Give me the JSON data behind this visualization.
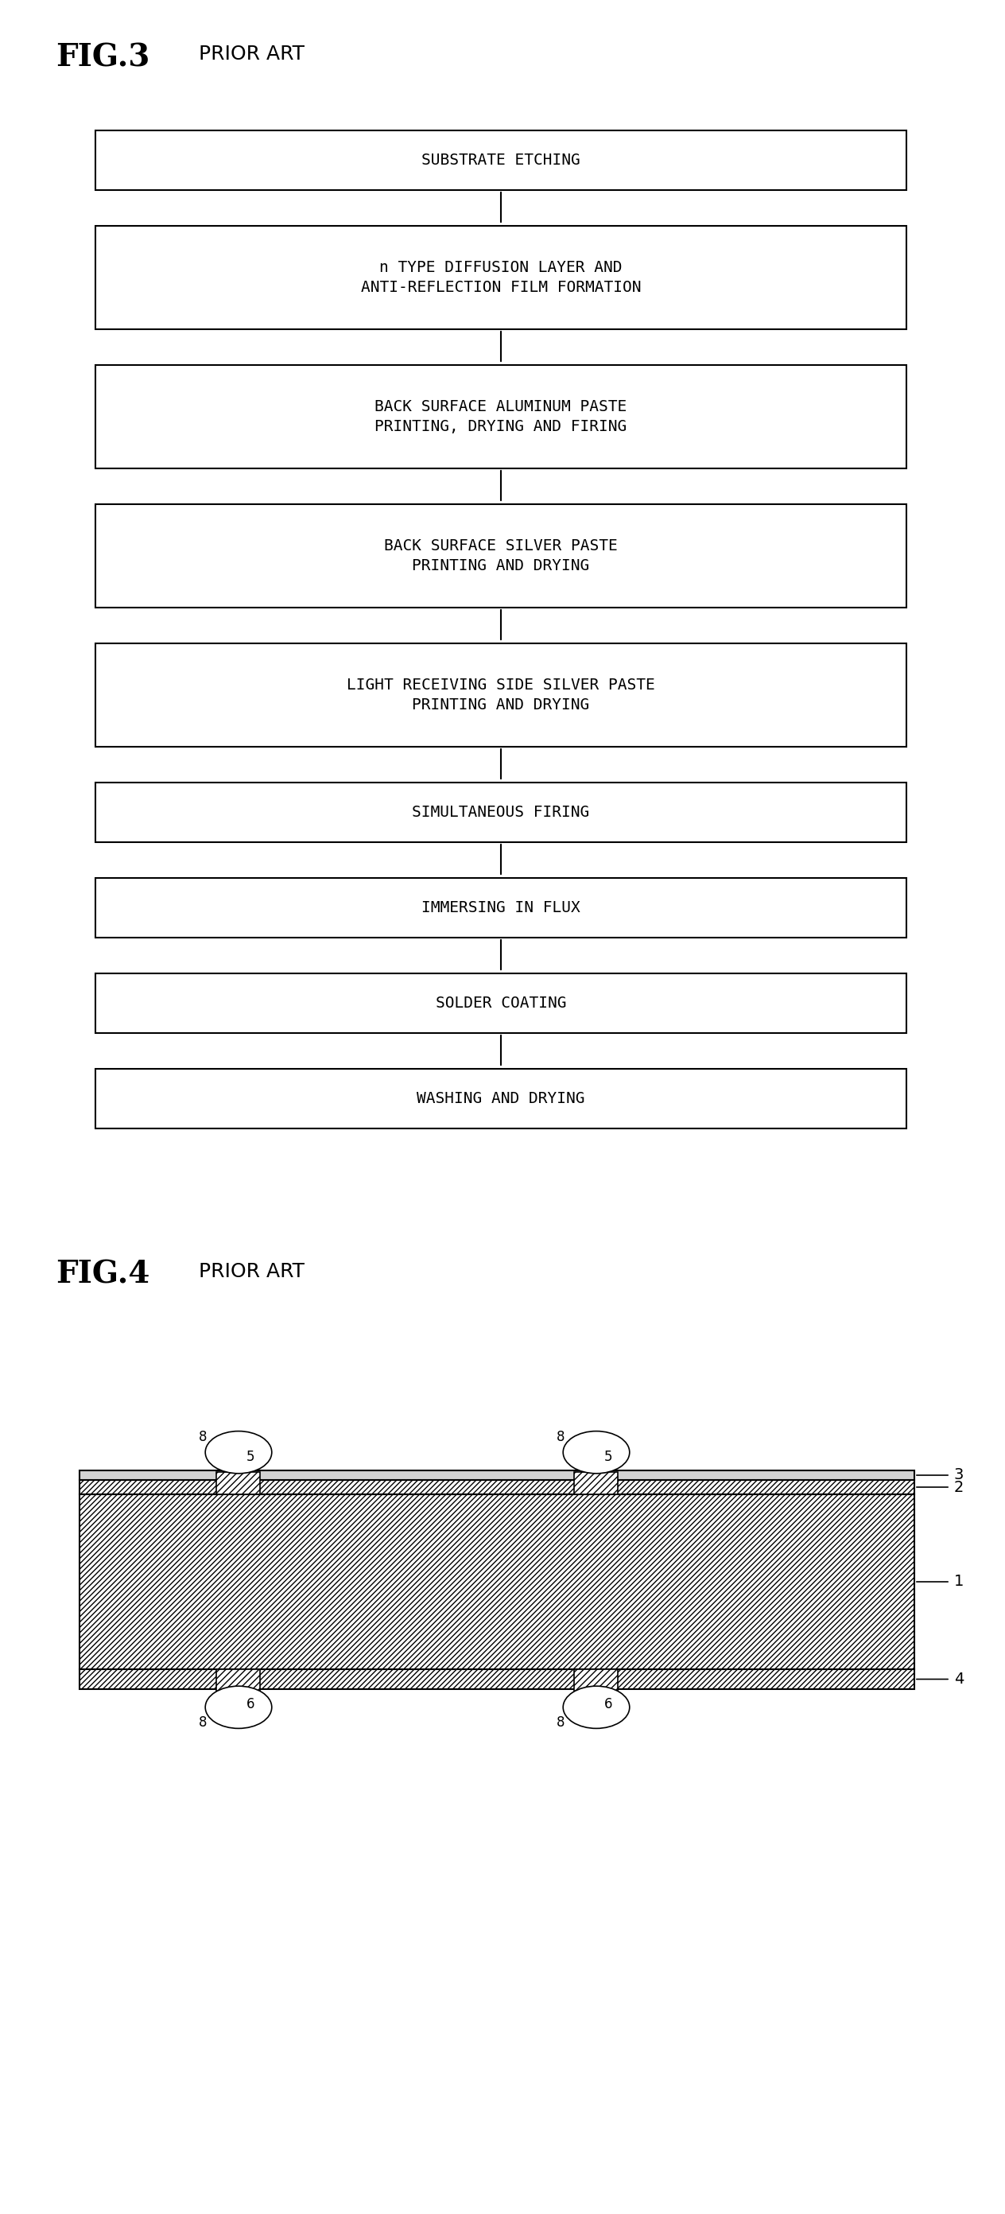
{
  "fig3_title": "FIG.3",
  "fig3_subtitle": "PRIOR ART",
  "fig4_title": "FIG.4",
  "fig4_subtitle": "PRIOR ART",
  "flowchart_boxes": [
    "SUBSTRATE ETCHING",
    "n TYPE DIFFUSION LAYER AND\nANTI-REFLECTION FILM FORMATION",
    "BACK SURFACE ALUMINUM PASTE\nPRINTING, DRYING AND FIRING",
    "BACK SURFACE SILVER PASTE\nPRINTING AND DRYING",
    "LIGHT RECEIVING SIDE SILVER PASTE\nPRINTING AND DRYING",
    "SIMULTANEOUS FIRING",
    "IMMERSING IN FLUX",
    "SOLDER COATING",
    "WASHING AND DRYING"
  ],
  "bg_color": "#ffffff",
  "box_color": "#ffffff",
  "box_edge_color": "#000000",
  "text_color": "#000000",
  "arrow_color": "#000000"
}
